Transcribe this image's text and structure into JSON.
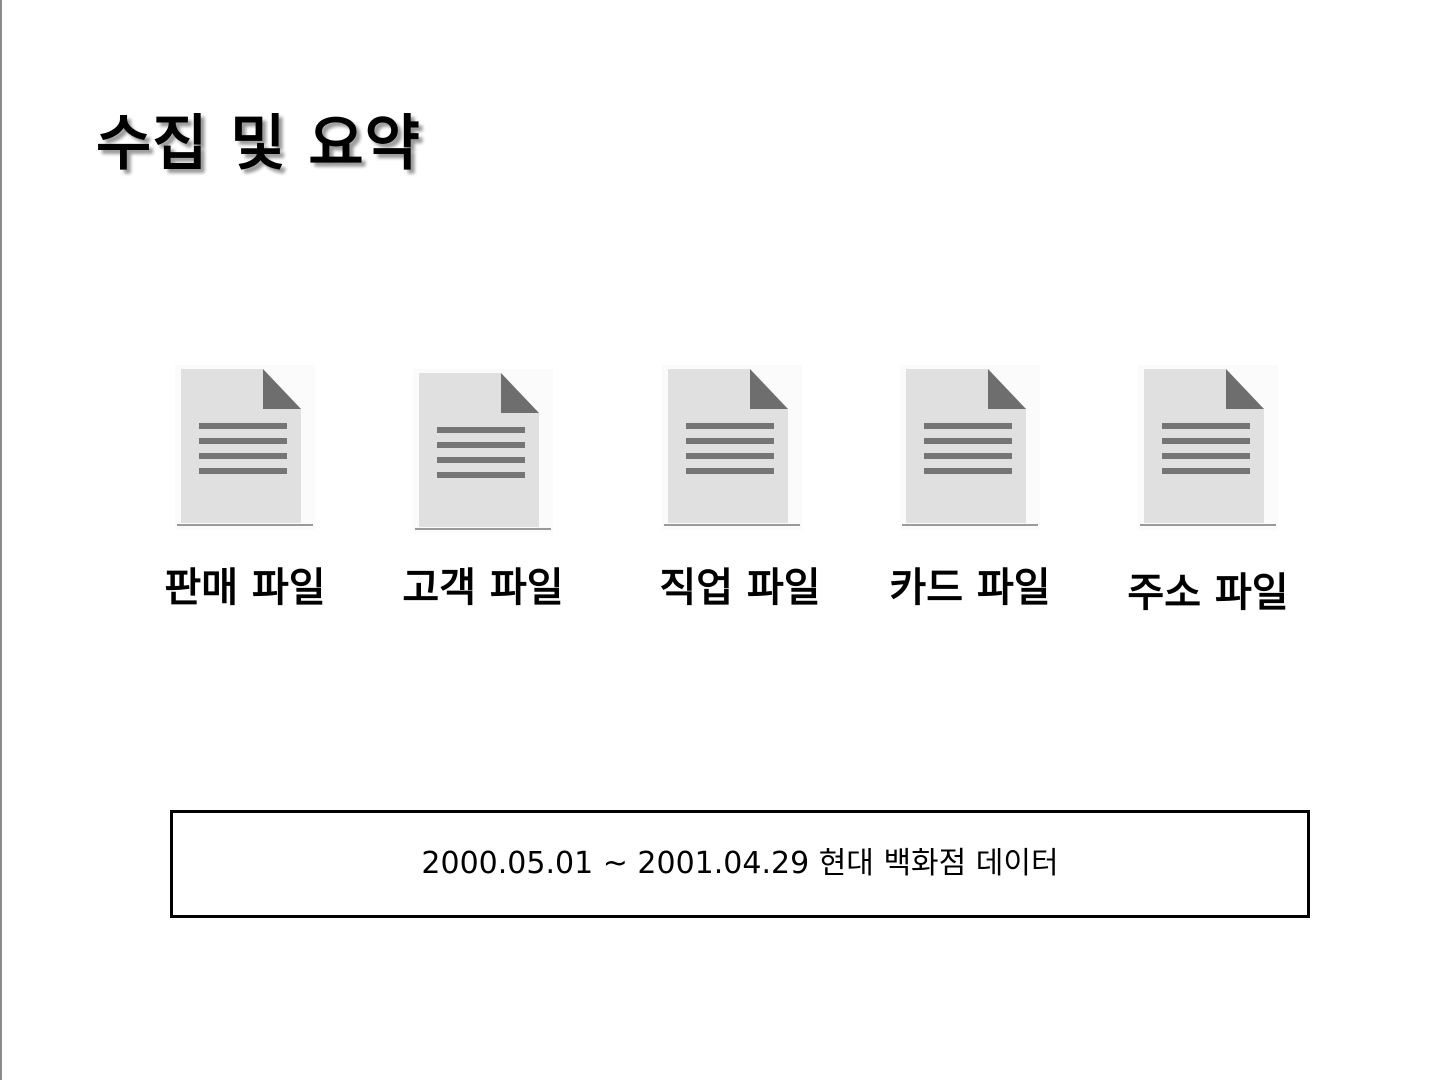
{
  "title": "수집 및 요약",
  "files": [
    {
      "label": "판매 파일",
      "icon": "document-icon"
    },
    {
      "label": "고객 파일",
      "icon": "document-icon"
    },
    {
      "label": "직업 파일",
      "icon": "document-icon"
    },
    {
      "label": "카드 파일",
      "icon": "document-icon"
    },
    {
      "label": "주소 파일",
      "icon": "document-icon"
    }
  ],
  "note": "2000.05.01 ~ 2001.04.29 현대 백화점 데이터",
  "colors": {
    "icon_page": "#e0e0e0",
    "icon_lines": "#757575",
    "icon_fold": "#6e6e6e",
    "title_shadow": "#9a9a9a"
  }
}
